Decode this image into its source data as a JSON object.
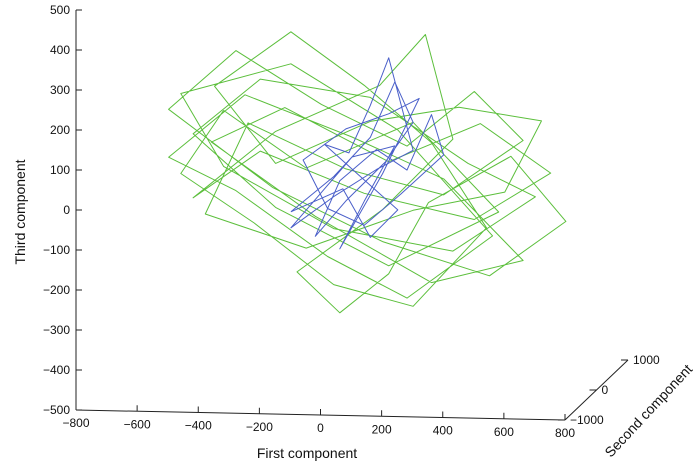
{
  "chart_data": {
    "type": "line",
    "projection": "3d",
    "xlabel": "First component",
    "ylabel": "Second component",
    "zlabel": "Third component",
    "xlim": [
      -800,
      800
    ],
    "ylim": [
      -1000,
      1000
    ],
    "zlim": [
      -500,
      500
    ],
    "xticks": [
      "−800",
      "−600",
      "−400",
      "−200",
      "0",
      "200",
      "400",
      "600",
      "800"
    ],
    "yticks": [
      "−1000",
      "0",
      "1000"
    ],
    "zticks": [
      "−500",
      "−400",
      "−300",
      "−200",
      "−100",
      "0",
      "100",
      "200",
      "300",
      "400",
      "500"
    ],
    "grid": false,
    "legend": false,
    "series": [
      {
        "color": "#5cbf3c",
        "points": [
          [
            -420,
            0,
            180
          ],
          [
            -150,
            0,
            40
          ],
          [
            200,
            0,
            160
          ],
          [
            480,
            0,
            -60
          ],
          [
            120,
            0,
            -200
          ],
          [
            -250,
            0,
            -60
          ],
          [
            -520,
            0,
            120
          ],
          [
            -300,
            0,
            260
          ],
          [
            60,
            0,
            220
          ],
          [
            380,
            0,
            60
          ],
          [
            600,
            0,
            -20
          ],
          [
            330,
            0,
            -160
          ],
          [
            -60,
            0,
            -110
          ],
          [
            -420,
            0,
            40
          ],
          [
            -560,
            0,
            220
          ],
          [
            -200,
            0,
            300
          ],
          [
            150,
            0,
            140
          ],
          [
            460,
            0,
            -120
          ],
          [
            180,
            0,
            -280
          ],
          [
            -80,
            0,
            -180
          ],
          [
            -380,
            0,
            -20
          ],
          [
            -600,
            0,
            60
          ],
          [
            -350,
            0,
            220
          ],
          [
            0,
            0,
            120
          ],
          [
            300,
            0,
            20
          ],
          [
            560,
            0,
            -180
          ],
          [
            260,
            0,
            -240
          ],
          [
            -120,
            0,
            -80
          ],
          [
            -460,
            0,
            100
          ],
          [
            -220,
            0,
            190
          ],
          [
            120,
            0,
            60
          ],
          [
            420,
            0,
            160
          ],
          [
            650,
            0,
            40
          ],
          [
            400,
            0,
            -80
          ],
          [
            40,
            0,
            -20
          ],
          [
            -300,
            0,
            80
          ],
          [
            -520,
            0,
            -40
          ],
          [
            -250,
            0,
            130
          ],
          [
            90,
            0,
            250
          ],
          [
            240,
            0,
            380
          ],
          [
            330,
            0,
            120
          ],
          [
            100,
            0,
            -60
          ],
          [
            -180,
            0,
            -220
          ],
          [
            -40,
            0,
            -320
          ],
          [
            120,
            0,
            -220
          ],
          [
            250,
            0,
            -40
          ],
          [
            520,
            0,
            80
          ],
          [
            700,
            0,
            -80
          ],
          [
            450,
            0,
            -220
          ],
          [
            100,
            0,
            -140
          ],
          [
            -260,
            0,
            -10
          ],
          [
            -600,
            0,
            180
          ],
          [
            -380,
            0,
            330
          ],
          [
            -100,
            0,
            200
          ],
          [
            180,
            0,
            100
          ],
          [
            400,
            0,
            240
          ],
          [
            560,
            0,
            120
          ],
          [
            300,
            0,
            -20
          ],
          [
            -20,
            0,
            40
          ],
          [
            -340,
            0,
            150
          ],
          [
            -480,
            0,
            -80
          ],
          [
            -150,
            0,
            -160
          ],
          [
            200,
            0,
            -60
          ],
          [
            500,
            0,
            -10
          ],
          [
            620,
            0,
            170
          ],
          [
            350,
            0,
            200
          ],
          [
            60,
            0,
            160
          ],
          [
            -250,
            0,
            50
          ],
          [
            -450,
            0,
            240
          ],
          [
            -200,
            0,
            380
          ],
          [
            40,
            0,
            250
          ],
          [
            260,
            0,
            110
          ],
          [
            440,
            0,
            -100
          ],
          [
            200,
            0,
            -300
          ],
          [
            -60,
            0,
            -250
          ],
          [
            -320,
            0,
            -100
          ],
          [
            -560,
            0,
            20
          ],
          [
            -420,
            0,
            180
          ]
        ]
      },
      {
        "color": "#4a5fc9",
        "points": [
          [
            -200,
            0,
            -70
          ],
          [
            -60,
            0,
            20
          ],
          [
            60,
            0,
            120
          ],
          [
            140,
            0,
            260
          ],
          [
            200,
            0,
            160
          ],
          [
            110,
            0,
            60
          ],
          [
            -20,
            0,
            -40
          ],
          [
            -120,
            0,
            -130
          ],
          [
            -40,
            0,
            10
          ],
          [
            80,
            0,
            90
          ],
          [
            180,
            0,
            40
          ],
          [
            260,
            0,
            180
          ],
          [
            300,
            0,
            80
          ],
          [
            160,
            0,
            -20
          ],
          [
            40,
            0,
            -100
          ],
          [
            -80,
            0,
            -60
          ],
          [
            -160,
            0,
            60
          ],
          [
            -20,
            0,
            140
          ],
          [
            120,
            0,
            180
          ],
          [
            220,
            0,
            220
          ],
          [
            100,
            0,
            30
          ],
          [
            -40,
            0,
            -160
          ],
          [
            40,
            0,
            -40
          ],
          [
            140,
            0,
            100
          ],
          [
            0,
            0,
            70
          ],
          [
            -100,
            0,
            -20
          ],
          [
            -200,
            0,
            -110
          ],
          [
            -60,
            0,
            -30
          ],
          [
            80,
            0,
            40
          ],
          [
            200,
            0,
            90
          ],
          [
            120,
            0,
            320
          ],
          [
            60,
            0,
            200
          ],
          [
            -10,
            0,
            80
          ],
          [
            -90,
            0,
            100
          ],
          [
            30,
            0,
            20
          ],
          [
            150,
            0,
            -60
          ],
          [
            60,
            0,
            -130
          ],
          [
            -30,
            0,
            -10
          ],
          [
            -200,
            0,
            -70
          ]
        ]
      }
    ]
  }
}
